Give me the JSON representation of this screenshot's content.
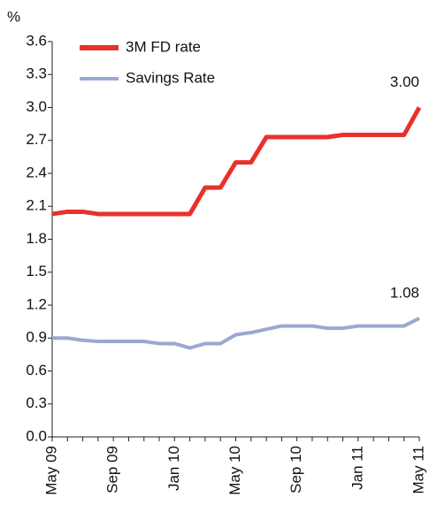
{
  "chart_data": {
    "type": "line",
    "y_label": "%",
    "categories": [
      "May 09",
      null,
      null,
      null,
      "Sep 09",
      null,
      null,
      null,
      "Jan 10",
      null,
      null,
      null,
      "May 10",
      null,
      null,
      null,
      "Sep 10",
      null,
      null,
      null,
      "Jan 11",
      null,
      null,
      null,
      "May 11"
    ],
    "series": [
      {
        "name": "3M FD rate",
        "color": "#e8312a",
        "label_color": "#e8312a",
        "values": [
          2.03,
          2.05,
          2.05,
          2.03,
          2.03,
          2.03,
          2.03,
          2.03,
          2.03,
          2.03,
          2.27,
          2.27,
          2.5,
          2.5,
          2.73,
          2.73,
          2.73,
          2.73,
          2.73,
          2.75,
          2.75,
          2.75,
          2.75,
          2.75,
          3.0
        ],
        "value_labels": [
          null,
          null,
          null,
          null,
          null,
          null,
          null,
          null,
          null,
          null,
          null,
          null,
          null,
          null,
          null,
          null,
          null,
          null,
          null,
          null,
          null,
          null,
          null,
          null,
          "3.00"
        ]
      },
      {
        "name": "Savings Rate",
        "color": "#9aa8d2",
        "label_color": "#3a4a9a",
        "values": [
          0.9,
          0.9,
          0.88,
          0.87,
          0.87,
          0.87,
          0.87,
          0.85,
          0.85,
          0.81,
          0.85,
          0.85,
          0.93,
          0.95,
          0.98,
          1.01,
          1.01,
          1.01,
          0.99,
          0.99,
          1.01,
          1.01,
          1.01,
          1.01,
          1.08
        ],
        "value_labels": [
          null,
          null,
          null,
          null,
          null,
          null,
          null,
          null,
          null,
          null,
          null,
          null,
          null,
          null,
          null,
          null,
          null,
          null,
          null,
          null,
          null,
          null,
          null,
          null,
          "1.08"
        ]
      }
    ],
    "ylim": [
      0,
      3.6
    ],
    "yticks": [
      {
        "value": 0,
        "label": "0.0"
      },
      0.3,
      0.6,
      0.9,
      1.2,
      1.5,
      1.8,
      2.1,
      2.4,
      2.7,
      {
        "value": 3,
        "label": "3.0"
      },
      3.3,
      3.6
    ],
    "grid": false,
    "legend": "top-left"
  }
}
